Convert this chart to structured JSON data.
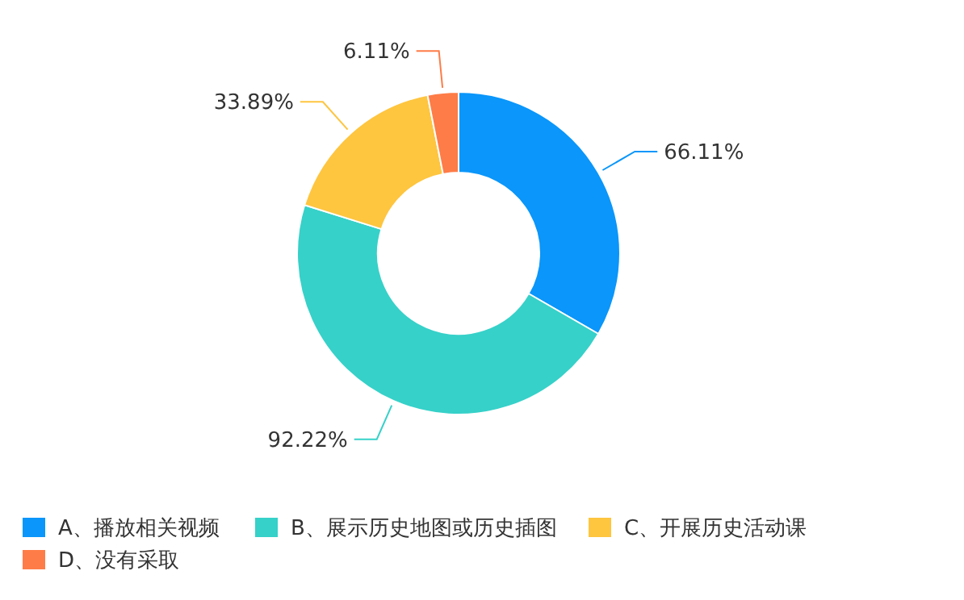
{
  "chart_data": {
    "type": "donut",
    "categories": [
      "A、播放相关视频",
      "B、展示历史地图或历史插图",
      "C、开展历史活动课",
      "D、没有采取"
    ],
    "values": [
      66.11,
      92.22,
      33.89,
      6.11
    ],
    "colors": [
      "#0a96fa",
      "#36d1c9",
      "#fec53f",
      "#fe7c47"
    ],
    "value_labels": [
      "66.11%",
      "92.22%",
      "33.89%",
      "6.11%"
    ],
    "legend": "bottom"
  }
}
